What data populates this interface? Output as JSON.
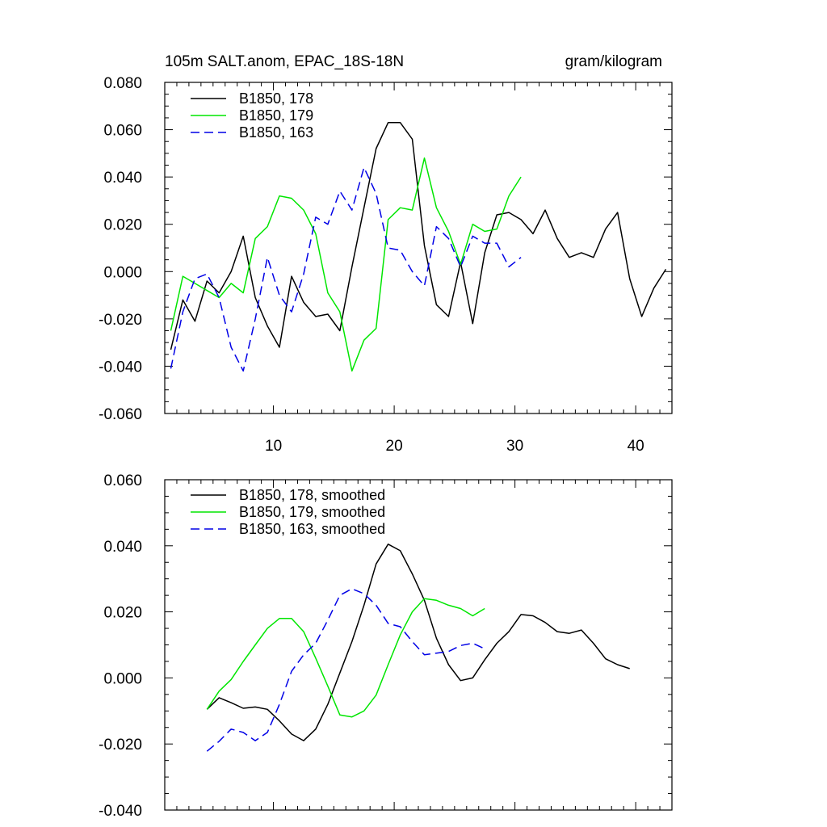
{
  "chart_data": [
    {
      "type": "line",
      "title_left": "105m SALT.anom, EPAC_18S-18N",
      "title_right": "gram/kilogram",
      "xlim": [
        1,
        43
      ],
      "ylim": [
        -0.06,
        0.08
      ],
      "xticks": [
        10,
        20,
        30,
        40
      ],
      "xtick_labels": [
        "10",
        "20",
        "30",
        "40"
      ],
      "yticks": [
        -0.06,
        -0.04,
        -0.02,
        0.0,
        0.02,
        0.04,
        0.06,
        0.08
      ],
      "ytick_labels": [
        "-0.060",
        "-0.040",
        "-0.020",
        "0.000",
        "0.020",
        "0.040",
        "0.060",
        "0.080"
      ],
      "legend_position": "top-left",
      "series": [
        {
          "name": "B1850, 178",
          "color": "#000000",
          "dash": "solid",
          "x_start": 1.5,
          "values": [
            -0.033,
            -0.012,
            -0.021,
            -0.004,
            -0.009,
            0.0,
            0.015,
            -0.011,
            -0.023,
            -0.032,
            -0.002,
            -0.013,
            -0.019,
            -0.018,
            -0.025,
            0.002,
            0.027,
            0.052,
            0.063,
            0.063,
            0.056,
            0.011,
            -0.014,
            -0.019,
            0.004,
            -0.022,
            0.008,
            0.024,
            0.025,
            0.022,
            0.016,
            0.026,
            0.014,
            0.006,
            0.008,
            0.006,
            0.018,
            0.025,
            -0.003,
            -0.019,
            -0.007,
            0.001
          ]
        },
        {
          "name": "B1850, 179",
          "color": "#00e600",
          "dash": "solid",
          "x_start": 1.5,
          "values": [
            -0.025,
            -0.002,
            -0.005,
            -0.008,
            -0.011,
            -0.005,
            -0.009,
            0.014,
            0.019,
            0.032,
            0.031,
            0.026,
            0.016,
            -0.009,
            -0.017,
            -0.042,
            -0.029,
            -0.024,
            0.022,
            0.027,
            0.026,
            0.048,
            0.027,
            0.017,
            0.003,
            0.02,
            0.017,
            0.018,
            0.032,
            0.04
          ]
        },
        {
          "name": "B1850, 163",
          "color": "#0000e6",
          "dash": "dashed",
          "x_start": 1.5,
          "values": [
            -0.041,
            -0.017,
            -0.003,
            -0.001,
            -0.011,
            -0.032,
            -0.042,
            -0.02,
            0.006,
            -0.01,
            -0.017,
            -0.001,
            0.023,
            0.02,
            0.034,
            0.026,
            0.044,
            0.033,
            0.01,
            0.009,
            0.0,
            -0.006,
            0.019,
            0.014,
            0.002,
            0.015,
            0.012,
            0.012,
            0.002,
            0.006
          ]
        }
      ]
    },
    {
      "type": "line",
      "xlim": [
        1,
        43
      ],
      "ylim": [
        -0.04,
        0.06
      ],
      "xticks": [
        10,
        20,
        30,
        40
      ],
      "yticks": [
        -0.04,
        -0.02,
        0.0,
        0.02,
        0.04,
        0.06
      ],
      "ytick_labels": [
        "-0.040",
        "-0.020",
        "0.000",
        "0.020",
        "0.040",
        "0.060"
      ],
      "legend_position": "top-left",
      "series": [
        {
          "name": "B1850, 178, smoothed",
          "color": "#000000",
          "dash": "solid",
          "x_start": 4.5,
          "values": [
            -0.0095,
            -0.006,
            -0.0075,
            -0.0092,
            -0.0088,
            -0.0095,
            -0.013,
            -0.017,
            -0.019,
            -0.0155,
            -0.008,
            0.0015,
            0.011,
            0.022,
            0.0345,
            0.0405,
            0.0385,
            0.0315,
            0.0235,
            0.012,
            0.004,
            -0.0008,
            0.0,
            0.0055,
            0.0105,
            0.014,
            0.0192,
            0.0188,
            0.0168,
            0.014,
            0.0135,
            0.0145,
            0.0105,
            0.0058,
            0.004,
            0.0028
          ]
        },
        {
          "name": "B1850, 179, smoothed",
          "color": "#00e600",
          "dash": "solid",
          "x_start": 4.5,
          "values": [
            -0.0095,
            -0.004,
            -0.0005,
            0.005,
            0.01,
            0.015,
            0.018,
            0.018,
            0.014,
            0.006,
            -0.0025,
            -0.0112,
            -0.0118,
            -0.01,
            -0.0052,
            0.004,
            0.013,
            0.02,
            0.024,
            0.0235,
            0.022,
            0.021,
            0.0188,
            0.021
          ]
        },
        {
          "name": "B1850, 163, smoothed",
          "color": "#0000e6",
          "dash": "dashed",
          "x_start": 4.5,
          "values": [
            -0.0222,
            -0.0192,
            -0.0155,
            -0.0165,
            -0.019,
            -0.0165,
            -0.008,
            0.002,
            0.007,
            0.0105,
            0.0175,
            0.025,
            0.027,
            0.0255,
            0.022,
            0.0165,
            0.0155,
            0.011,
            0.007,
            0.0075,
            0.008,
            0.0098,
            0.0105,
            0.0088
          ]
        }
      ]
    }
  ]
}
